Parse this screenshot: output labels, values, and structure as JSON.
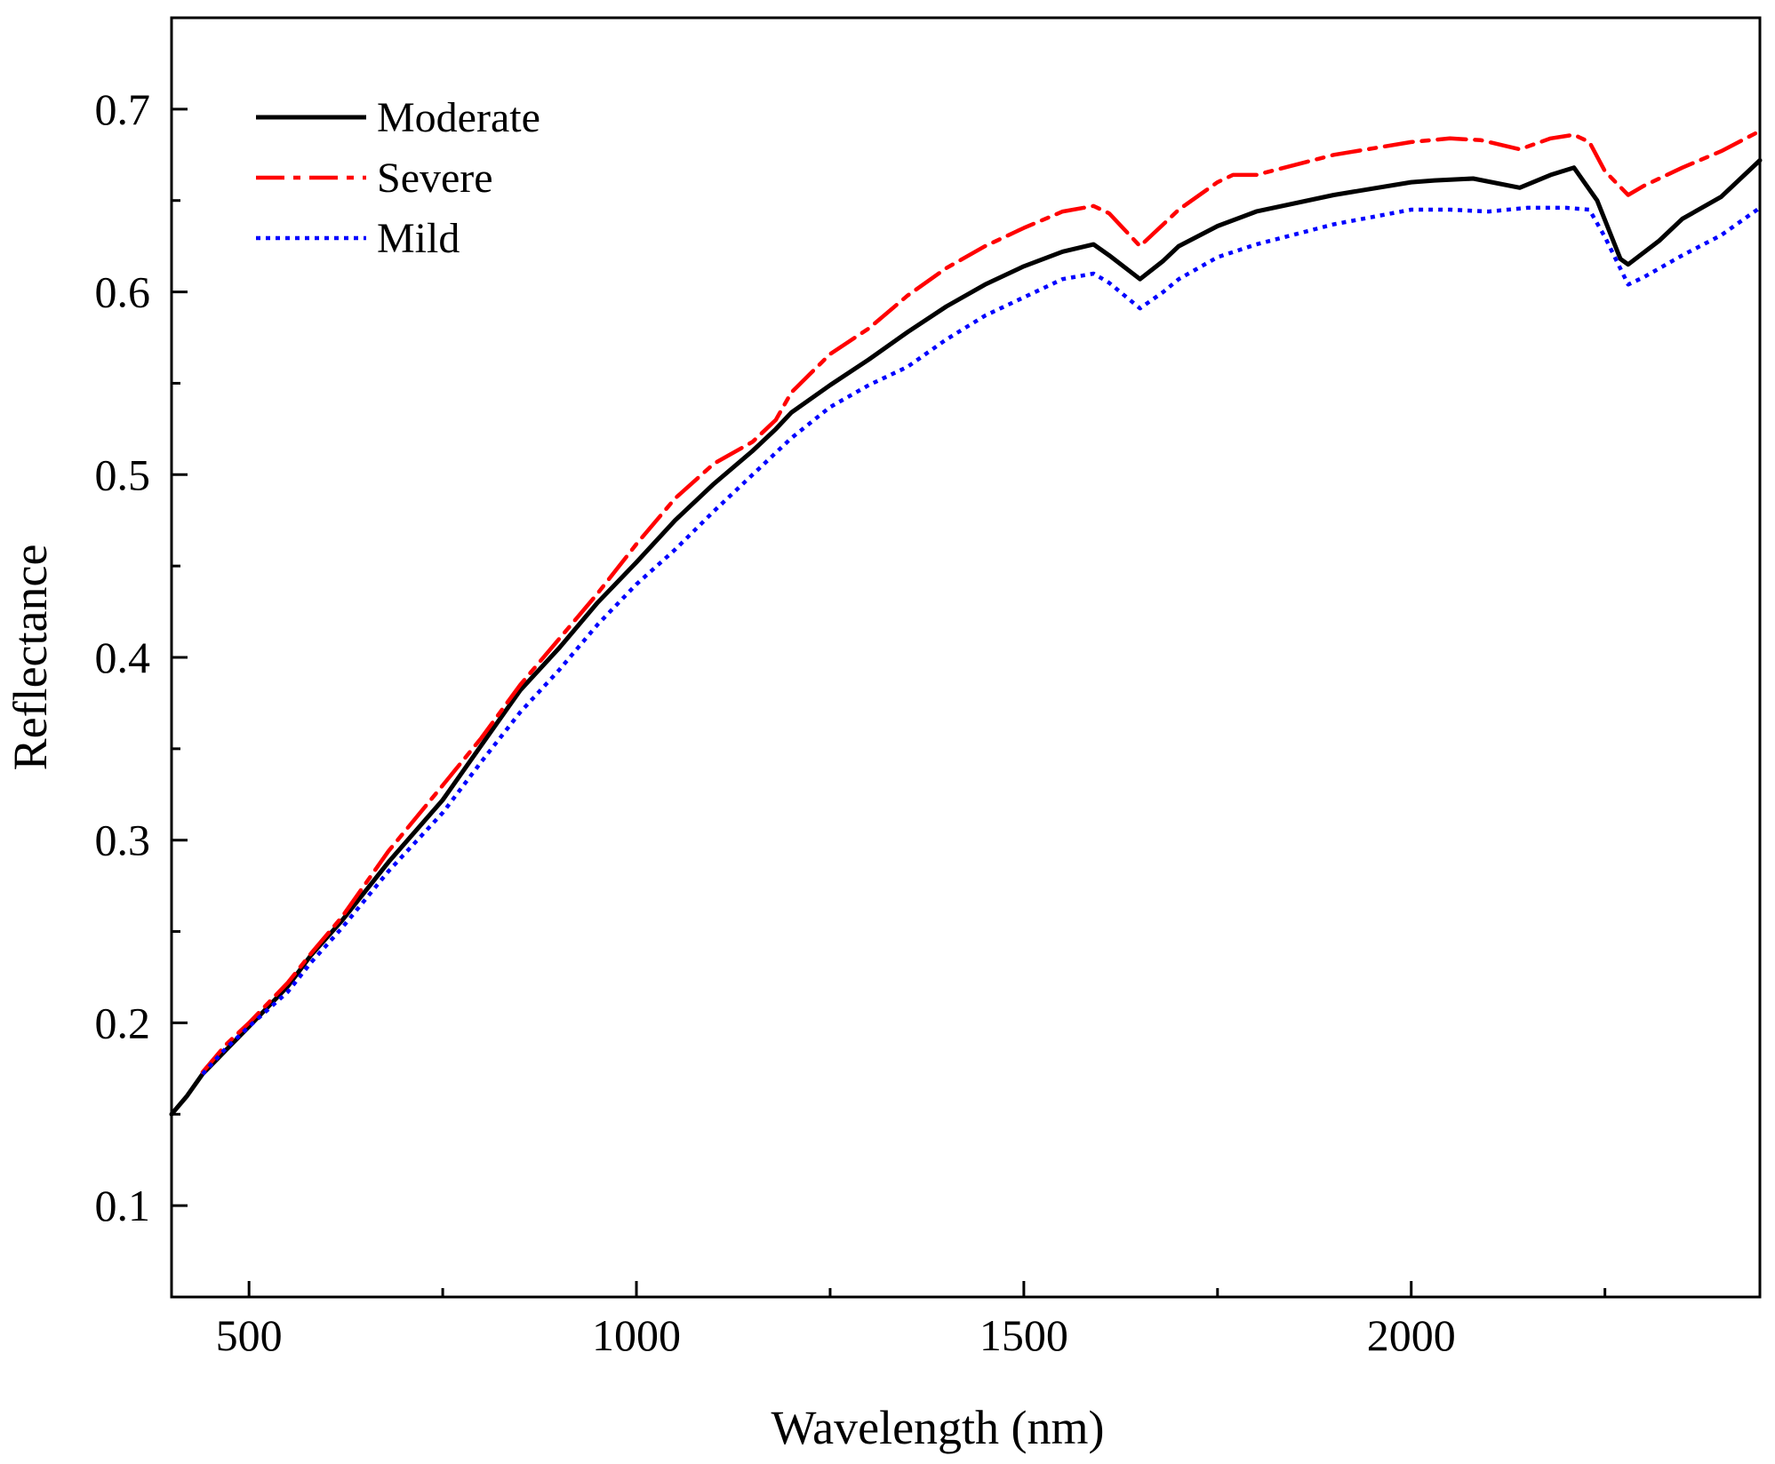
{
  "chart_data": {
    "type": "line",
    "title": "",
    "xlabel": "Wavelength (nm)",
    "ylabel": "Reflectance",
    "xlim": [
      400,
      2450
    ],
    "ylim": [
      0.05,
      0.75
    ],
    "x_major_ticks": [
      500,
      1000,
      1500,
      2000
    ],
    "x_minor_ticks": [
      750,
      1250,
      1750,
      2250
    ],
    "x_tick_labels": [
      "500",
      "1000",
      "1500",
      "2000"
    ],
    "y_major_ticks": [
      0.1,
      0.2,
      0.3,
      0.4,
      0.5,
      0.6,
      0.7
    ],
    "y_minor_ticks": [
      0.15,
      0.25,
      0.35,
      0.45,
      0.55,
      0.65
    ],
    "y_tick_labels": [
      "0.1",
      "0.2",
      "0.3",
      "0.4",
      "0.5",
      "0.6",
      "0.7"
    ],
    "grid": false,
    "legend_position": "top-left",
    "series": [
      {
        "name": "Moderate",
        "color": "#000000",
        "style": "solid",
        "x": [
          400,
          420,
          440,
          470,
          500,
          550,
          580,
          620,
          680,
          750,
          800,
          850,
          900,
          950,
          1000,
          1050,
          1100,
          1150,
          1180,
          1200,
          1250,
          1300,
          1350,
          1400,
          1450,
          1500,
          1550,
          1590,
          1610,
          1650,
          1680,
          1700,
          1750,
          1800,
          1900,
          2000,
          2030,
          2080,
          2140,
          2180,
          2210,
          2240,
          2270,
          2280,
          2320,
          2350,
          2400,
          2450
        ],
        "values": [
          0.15,
          0.16,
          0.172,
          0.185,
          0.198,
          0.22,
          0.237,
          0.256,
          0.288,
          0.322,
          0.352,
          0.382,
          0.405,
          0.43,
          0.452,
          0.475,
          0.495,
          0.513,
          0.525,
          0.534,
          0.549,
          0.563,
          0.578,
          0.592,
          0.604,
          0.614,
          0.622,
          0.626,
          0.62,
          0.607,
          0.617,
          0.625,
          0.636,
          0.644,
          0.653,
          0.66,
          0.661,
          0.662,
          0.657,
          0.664,
          0.668,
          0.65,
          0.618,
          0.615,
          0.628,
          0.64,
          0.652,
          0.672
        ]
      },
      {
        "name": "Severe",
        "color": "#ff0000",
        "style": "dashdot",
        "x": [
          440,
          470,
          500,
          550,
          580,
          620,
          680,
          750,
          800,
          850,
          900,
          950,
          1000,
          1050,
          1100,
          1150,
          1180,
          1200,
          1250,
          1300,
          1350,
          1400,
          1450,
          1500,
          1550,
          1590,
          1610,
          1650,
          1680,
          1700,
          1750,
          1770,
          1800,
          1900,
          2000,
          2050,
          2090,
          2140,
          2180,
          2210,
          2230,
          2250,
          2280,
          2300,
          2350,
          2400,
          2450
        ],
        "values": [
          0.173,
          0.188,
          0.2,
          0.222,
          0.238,
          0.258,
          0.294,
          0.33,
          0.356,
          0.385,
          0.41,
          0.435,
          0.462,
          0.487,
          0.506,
          0.518,
          0.53,
          0.545,
          0.566,
          0.58,
          0.598,
          0.613,
          0.625,
          0.635,
          0.644,
          0.647,
          0.643,
          0.625,
          0.637,
          0.645,
          0.66,
          0.664,
          0.664,
          0.675,
          0.682,
          0.684,
          0.683,
          0.678,
          0.684,
          0.686,
          0.682,
          0.666,
          0.653,
          0.658,
          0.668,
          0.677,
          0.688
        ]
      },
      {
        "name": "Mild",
        "color": "#0000ff",
        "style": "dotted",
        "x": [
          440,
          470,
          500,
          550,
          580,
          620,
          680,
          750,
          800,
          850,
          900,
          950,
          1000,
          1050,
          1100,
          1150,
          1180,
          1200,
          1250,
          1300,
          1350,
          1400,
          1450,
          1500,
          1550,
          1590,
          1610,
          1650,
          1680,
          1700,
          1750,
          1800,
          1900,
          2000,
          2050,
          2100,
          2150,
          2200,
          2230,
          2250,
          2280,
          2300,
          2350,
          2400,
          2450
        ],
        "values": [
          0.172,
          0.186,
          0.198,
          0.217,
          0.233,
          0.252,
          0.283,
          0.315,
          0.343,
          0.37,
          0.393,
          0.418,
          0.44,
          0.459,
          0.48,
          0.5,
          0.512,
          0.52,
          0.537,
          0.549,
          0.559,
          0.574,
          0.587,
          0.597,
          0.607,
          0.61,
          0.605,
          0.591,
          0.6,
          0.607,
          0.619,
          0.626,
          0.637,
          0.645,
          0.645,
          0.644,
          0.646,
          0.646,
          0.645,
          0.63,
          0.604,
          0.608,
          0.62,
          0.631,
          0.646
        ]
      }
    ]
  }
}
